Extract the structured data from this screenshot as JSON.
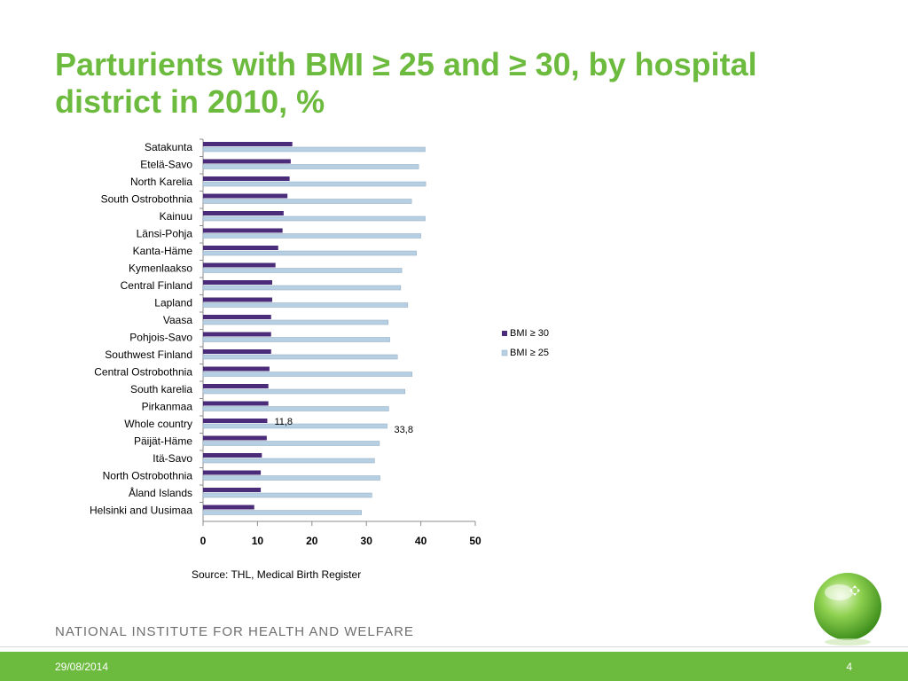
{
  "slide": {
    "title": "Parturients with BMI ≥ 25 and ≥ 30, by hospital district in 2010, %",
    "source": "Source: THL, Medical Birth Register",
    "organization": "NATIONAL INSTITUTE FOR HEALTH AND WELFARE",
    "date": "29/08/2014",
    "page_number": "4"
  },
  "colors": {
    "title_green": "#6dbb3e",
    "footer_green": "#6dbb3e",
    "bmi30": "#4b2c7a",
    "bmi25": "#b7cfe3"
  },
  "chart_data": {
    "type": "bar",
    "orientation": "horizontal",
    "categories": [
      "Satakunta",
      "Etelä-Savo",
      "North Karelia",
      "South Ostrobothnia",
      "Kainuu",
      "Länsi-Pohja",
      "Kanta-Häme",
      "Kymenlaakso",
      "Central Finland",
      "Lapland",
      "Vaasa",
      "Pohjois-Savo",
      "Southwest Finland",
      "Central Ostrobothnia",
      "South karelia",
      "Pirkanmaa",
      "Whole country",
      "Päijät-Häme",
      "Itä-Savo",
      "North Ostrobothnia",
      "Åland Islands",
      "Helsinki and Uusimaa"
    ],
    "series": [
      {
        "name": "BMI ≥ 30",
        "color": "#4b2c7a",
        "values": [
          16.4,
          16.1,
          15.9,
          15.5,
          14.8,
          14.6,
          13.8,
          13.3,
          12.7,
          12.7,
          12.5,
          12.5,
          12.5,
          12.2,
          12.0,
          12.0,
          11.8,
          11.7,
          10.8,
          10.6,
          10.6,
          9.4
        ]
      },
      {
        "name": "BMI ≥ 25",
        "color": "#b7cfe3",
        "values": [
          40.8,
          39.6,
          40.9,
          38.3,
          40.8,
          40.0,
          39.2,
          36.5,
          36.3,
          37.6,
          34.0,
          34.3,
          35.7,
          38.4,
          37.1,
          34.1,
          33.8,
          32.4,
          31.5,
          32.5,
          31.0,
          29.1
        ]
      }
    ],
    "data_labels": [
      {
        "category": "Whole country",
        "series": "BMI ≥ 30",
        "text": "11,8"
      },
      {
        "category": "Whole country",
        "series": "BMI ≥ 25",
        "text": "33,8"
      }
    ],
    "xlim": [
      0,
      50
    ],
    "xticks": [
      0,
      10,
      20,
      30,
      40,
      50
    ],
    "grid": false,
    "legend": "right"
  }
}
